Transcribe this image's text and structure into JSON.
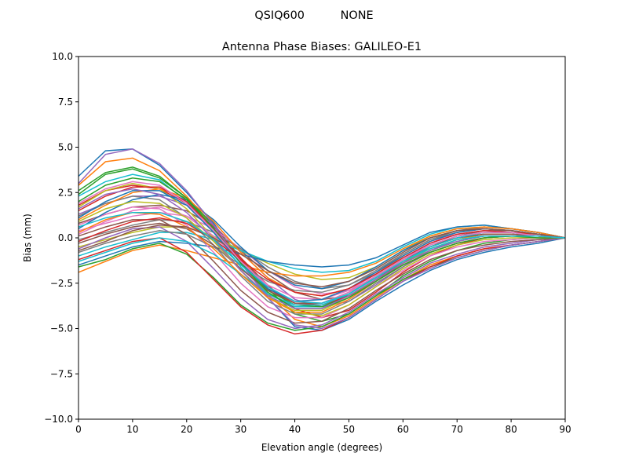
{
  "figure": {
    "suptitle": "QSIQ600          NONE"
  },
  "chart_data": {
    "type": "line",
    "title": "Antenna Phase Biases: GALILEO-E1",
    "xlabel": "Elevation angle (degrees)",
    "ylabel": "Bias (mm)",
    "xlim": [
      0,
      90
    ],
    "ylim": [
      -10,
      10
    ],
    "xticks": [
      0,
      10,
      20,
      30,
      40,
      50,
      60,
      70,
      80,
      90
    ],
    "xtick_labels": [
      "0",
      "10",
      "20",
      "30",
      "40",
      "50",
      "60",
      "70",
      "80",
      "90"
    ],
    "yticks": [
      -10,
      -7.5,
      -5,
      -2.5,
      0,
      2.5,
      5,
      7.5,
      10
    ],
    "ytick_labels": [
      "−10.0",
      "−7.5",
      "−5.0",
      "−2.5",
      "0.0",
      "2.5",
      "5.0",
      "7.5",
      "10.0"
    ],
    "grid": false,
    "legend": "none",
    "x": [
      0,
      5,
      10,
      15,
      20,
      25,
      30,
      35,
      40,
      45,
      50,
      55,
      60,
      65,
      70,
      75,
      80,
      85,
      90
    ],
    "series": [
      {
        "color": "#1f77b4",
        "values": [
          3.4,
          4.8,
          4.9,
          4.0,
          2.5,
          0.8,
          -1.3,
          -3.3,
          -4.9,
          -5.1,
          -4.5,
          -3.5,
          -2.6,
          -1.8,
          -1.2,
          -0.8,
          -0.5,
          -0.3,
          0.0
        ]
      },
      {
        "color": "#ff7f0e",
        "values": [
          2.9,
          4.2,
          4.4,
          3.7,
          2.3,
          0.6,
          -1.4,
          -3.1,
          -4.5,
          -4.9,
          -4.3,
          -3.3,
          -2.3,
          -1.5,
          -1.0,
          -0.6,
          -0.4,
          -0.2,
          0.0
        ]
      },
      {
        "color": "#2ca02c",
        "values": [
          2.4,
          3.5,
          3.8,
          3.3,
          2.2,
          0.7,
          -1.1,
          -2.8,
          -4.2,
          -4.6,
          -4.2,
          -3.2,
          -2.1,
          -1.3,
          -0.7,
          -0.3,
          -0.1,
          0.0,
          0.0
        ]
      },
      {
        "color": "#d62728",
        "values": [
          1.8,
          2.6,
          2.9,
          2.7,
          1.9,
          0.6,
          -1.1,
          -2.6,
          -3.9,
          -4.4,
          -4.0,
          -3.0,
          -1.9,
          -1.0,
          -0.4,
          0.0,
          0.1,
          0.1,
          0.0
        ]
      },
      {
        "color": "#9467bd",
        "values": [
          1.3,
          1.9,
          2.3,
          2.3,
          1.8,
          0.7,
          -0.8,
          -2.2,
          -3.4,
          -3.8,
          -3.5,
          -2.6,
          -1.6,
          -0.7,
          -0.1,
          0.2,
          0.2,
          0.1,
          0.0
        ]
      },
      {
        "color": "#8c564b",
        "values": [
          0.8,
          1.3,
          1.7,
          1.8,
          1.5,
          0.6,
          -0.7,
          -2.0,
          -3.0,
          -3.4,
          -3.2,
          -2.4,
          -1.4,
          -0.5,
          0.1,
          0.4,
          0.4,
          0.2,
          0.0
        ]
      },
      {
        "color": "#e377c2",
        "values": [
          0.4,
          0.8,
          1.2,
          1.4,
          1.2,
          0.5,
          -0.6,
          -1.8,
          -2.7,
          -3.1,
          -2.9,
          -2.2,
          -1.2,
          -0.3,
          0.3,
          0.6,
          0.5,
          0.3,
          0.0
        ]
      },
      {
        "color": "#7f7f7f",
        "values": [
          -0.1,
          0.3,
          0.7,
          1.0,
          0.9,
          0.3,
          -0.6,
          -1.6,
          -2.4,
          -2.8,
          -2.6,
          -1.9,
          -0.9,
          -0.1,
          0.4,
          0.6,
          0.5,
          0.3,
          0.0
        ]
      },
      {
        "color": "#bcbd22",
        "values": [
          -0.5,
          -0.1,
          0.3,
          0.6,
          0.6,
          0.1,
          -0.7,
          -1.4,
          -2.0,
          -2.3,
          -2.2,
          -1.6,
          -0.7,
          0.1,
          0.5,
          0.6,
          0.5,
          0.3,
          0.0
        ]
      },
      {
        "color": "#17becf",
        "values": [
          -1.0,
          -0.5,
          -0.1,
          0.3,
          0.3,
          -0.1,
          -0.7,
          -1.3,
          -1.7,
          -1.9,
          -1.8,
          -1.3,
          -0.5,
          0.2,
          0.6,
          0.7,
          0.5,
          0.3,
          0.0
        ]
      },
      {
        "color": "#1f77b4",
        "values": [
          -1.5,
          -1.0,
          -0.5,
          -0.2,
          -0.3,
          -0.5,
          -0.9,
          -1.3,
          -1.5,
          -1.6,
          -1.5,
          -1.1,
          -0.4,
          0.3,
          0.6,
          0.7,
          0.5,
          0.3,
          0.0
        ]
      },
      {
        "color": "#ff7f0e",
        "values": [
          -1.9,
          -1.3,
          -0.7,
          -0.4,
          -0.7,
          -1.1,
          -1.5,
          -1.9,
          -2.1,
          -2.1,
          -1.9,
          -1.4,
          -0.6,
          0.1,
          0.5,
          0.6,
          0.5,
          0.3,
          0.0
        ]
      },
      {
        "color": "#2ca02c",
        "values": [
          -1.6,
          -1.2,
          -0.6,
          -0.3,
          -0.9,
          -2.2,
          -3.7,
          -4.7,
          -5.1,
          -4.9,
          -4.2,
          -3.2,
          -2.3,
          -1.6,
          -1.1,
          -0.7,
          -0.4,
          -0.2,
          0.0
        ]
      },
      {
        "color": "#d62728",
        "values": [
          -1.2,
          -0.7,
          -0.2,
          0.0,
          -0.8,
          -2.3,
          -3.8,
          -4.8,
          -5.3,
          -5.1,
          -4.4,
          -3.4,
          -2.4,
          -1.6,
          -1.0,
          -0.6,
          -0.4,
          -0.2,
          0.0
        ]
      },
      {
        "color": "#9467bd",
        "values": [
          -0.6,
          0.0,
          0.5,
          0.6,
          -0.2,
          -1.7,
          -3.3,
          -4.5,
          -5.0,
          -4.8,
          -4.1,
          -3.1,
          -2.2,
          -1.4,
          -0.9,
          -0.5,
          -0.3,
          -0.1,
          0.0
        ]
      },
      {
        "color": "#8c564b",
        "values": [
          0.1,
          0.6,
          1.0,
          1.0,
          0.2,
          -1.3,
          -2.9,
          -4.1,
          -4.7,
          -4.6,
          -3.9,
          -2.9,
          -2.0,
          -1.2,
          -0.7,
          -0.4,
          -0.2,
          -0.1,
          0.0
        ]
      },
      {
        "color": "#e377c2",
        "values": [
          0.7,
          1.3,
          1.7,
          1.6,
          0.7,
          -0.8,
          -2.5,
          -3.8,
          -4.4,
          -4.4,
          -3.7,
          -2.7,
          -1.8,
          -1.0,
          -0.5,
          -0.2,
          -0.1,
          0.0,
          0.0
        ]
      },
      {
        "color": "#7f7f7f",
        "values": [
          1.2,
          1.9,
          2.3,
          2.1,
          1.1,
          -0.4,
          -2.1,
          -3.5,
          -4.2,
          -4.2,
          -3.5,
          -2.5,
          -1.6,
          -0.8,
          -0.3,
          0.0,
          0.1,
          0.1,
          0.0
        ]
      },
      {
        "color": "#bcbd22",
        "values": [
          1.7,
          2.6,
          3.0,
          2.7,
          1.6,
          0.0,
          -1.8,
          -3.3,
          -4.0,
          -4.0,
          -3.3,
          -2.3,
          -1.4,
          -0.6,
          -0.1,
          0.2,
          0.2,
          0.1,
          0.0
        ]
      },
      {
        "color": "#17becf",
        "values": [
          2.3,
          3.1,
          3.5,
          3.2,
          2.0,
          0.3,
          -1.6,
          -3.1,
          -3.8,
          -3.8,
          -3.1,
          -2.1,
          -1.2,
          -0.4,
          0.1,
          0.3,
          0.3,
          0.2,
          0.0
        ]
      },
      {
        "color": "#1f77b4",
        "values": [
          0.5,
          1.4,
          2.1,
          2.4,
          2.1,
          1.0,
          -0.5,
          -1.8,
          -2.6,
          -2.8,
          -2.4,
          -1.6,
          -0.7,
          0.0,
          0.4,
          0.5,
          0.4,
          0.2,
          0.0
        ]
      },
      {
        "color": "#ff7f0e",
        "values": [
          1.0,
          1.8,
          2.5,
          2.7,
          2.2,
          0.9,
          -0.8,
          -2.2,
          -3.0,
          -3.2,
          -2.8,
          -2.0,
          -1.0,
          -0.2,
          0.3,
          0.5,
          0.4,
          0.2,
          0.0
        ]
      },
      {
        "color": "#2ca02c",
        "values": [
          2.0,
          2.9,
          3.3,
          3.1,
          2.1,
          0.5,
          -1.3,
          -2.9,
          -3.7,
          -3.8,
          -3.2,
          -2.3,
          -1.4,
          -0.7,
          -0.2,
          0.1,
          0.1,
          0.1,
          0.0
        ]
      },
      {
        "color": "#d62728",
        "values": [
          1.5,
          2.3,
          2.8,
          2.8,
          2.0,
          0.5,
          -1.2,
          -2.8,
          -3.6,
          -3.7,
          -3.2,
          -2.3,
          -1.3,
          -0.5,
          0.0,
          0.2,
          0.2,
          0.1,
          0.0
        ]
      },
      {
        "color": "#9467bd",
        "values": [
          3.0,
          4.6,
          4.9,
          4.1,
          2.6,
          0.7,
          -1.4,
          -3.3,
          -4.8,
          -5.0,
          -4.4,
          -3.4,
          -2.4,
          -1.7,
          -1.1,
          -0.7,
          -0.4,
          -0.2,
          0.0
        ]
      },
      {
        "color": "#8c564b",
        "values": [
          -0.3,
          0.2,
          0.6,
          0.8,
          0.5,
          -0.4,
          -1.7,
          -2.9,
          -3.6,
          -3.6,
          -3.0,
          -2.1,
          -1.2,
          -0.5,
          0.0,
          0.2,
          0.2,
          0.1,
          0.0
        ]
      },
      {
        "color": "#e377c2",
        "values": [
          0.2,
          0.9,
          1.5,
          1.7,
          1.2,
          0.1,
          -1.3,
          -2.6,
          -3.3,
          -3.4,
          -2.9,
          -2.0,
          -1.1,
          -0.3,
          0.2,
          0.4,
          0.3,
          0.2,
          0.0
        ]
      },
      {
        "color": "#7f7f7f",
        "values": [
          -0.8,
          -0.3,
          0.1,
          0.4,
          0.2,
          -0.5,
          -1.5,
          -2.4,
          -2.9,
          -3.0,
          -2.6,
          -1.8,
          -0.9,
          -0.1,
          0.3,
          0.5,
          0.4,
          0.2,
          0.0
        ]
      },
      {
        "color": "#bcbd22",
        "values": [
          0.9,
          1.6,
          2.0,
          1.9,
          1.1,
          -0.2,
          -1.8,
          -3.2,
          -4.1,
          -4.3,
          -3.7,
          -2.7,
          -1.7,
          -0.9,
          -0.4,
          -0.1,
          0.0,
          0.0,
          0.0
        ]
      },
      {
        "color": "#17becf",
        "values": [
          -1.3,
          -0.8,
          -0.3,
          0.0,
          -0.2,
          -0.9,
          -2.0,
          -3.1,
          -3.7,
          -3.7,
          -3.1,
          -2.2,
          -1.3,
          -0.5,
          0.0,
          0.3,
          0.3,
          0.1,
          0.0
        ]
      },
      {
        "color": "#1f77b4",
        "values": [
          1.1,
          2.0,
          2.6,
          2.6,
          1.8,
          0.3,
          -1.4,
          -2.8,
          -3.5,
          -3.4,
          -2.8,
          -1.9,
          -1.0,
          -0.2,
          0.3,
          0.5,
          0.4,
          0.2,
          0.0
        ]
      },
      {
        "color": "#ff7f0e",
        "values": [
          0.3,
          1.0,
          1.4,
          1.3,
          0.6,
          -0.6,
          -2.0,
          -3.3,
          -4.1,
          -4.1,
          -3.4,
          -2.4,
          -1.5,
          -0.8,
          -0.3,
          0.0,
          0.1,
          0.1,
          0.0
        ]
      },
      {
        "color": "#2ca02c",
        "values": [
          2.6,
          3.6,
          3.9,
          3.4,
          2.2,
          0.5,
          -1.4,
          -3.0,
          -3.9,
          -3.9,
          -3.3,
          -2.4,
          -1.5,
          -0.8,
          -0.3,
          0.0,
          0.1,
          0.0,
          0.0
        ]
      },
      {
        "color": "#d62728",
        "values": [
          -0.2,
          0.4,
          0.9,
          1.1,
          0.8,
          -0.1,
          -1.2,
          -2.3,
          -3.0,
          -3.2,
          -2.8,
          -2.0,
          -1.1,
          -0.3,
          0.2,
          0.4,
          0.3,
          0.2,
          0.0
        ]
      },
      {
        "color": "#9467bd",
        "values": [
          1.6,
          2.4,
          2.7,
          2.4,
          1.4,
          -0.1,
          -1.8,
          -3.2,
          -3.9,
          -3.9,
          -3.2,
          -2.3,
          -1.4,
          -0.7,
          -0.2,
          0.1,
          0.1,
          0.1,
          0.0
        ]
      },
      {
        "color": "#8c564b",
        "values": [
          -0.7,
          -0.2,
          0.4,
          0.7,
          0.6,
          0.0,
          -0.9,
          -1.8,
          -2.5,
          -2.7,
          -2.4,
          -1.7,
          -0.8,
          0.0,
          0.4,
          0.5,
          0.4,
          0.2,
          0.0
        ]
      },
      {
        "color": "#e377c2",
        "values": [
          1.9,
          2.7,
          3.1,
          2.9,
          1.9,
          0.4,
          -1.3,
          -2.7,
          -3.5,
          -3.6,
          -3.0,
          -2.1,
          -1.2,
          -0.4,
          0.1,
          0.3,
          0.3,
          0.1,
          0.0
        ]
      },
      {
        "color": "#17becf",
        "values": [
          0.6,
          1.1,
          1.4,
          1.4,
          0.9,
          -0.1,
          -1.5,
          -2.7,
          -3.5,
          -3.6,
          -3.1,
          -2.2,
          -1.3,
          -0.6,
          -0.1,
          0.1,
          0.1,
          0.1,
          0.0
        ]
      }
    ]
  }
}
